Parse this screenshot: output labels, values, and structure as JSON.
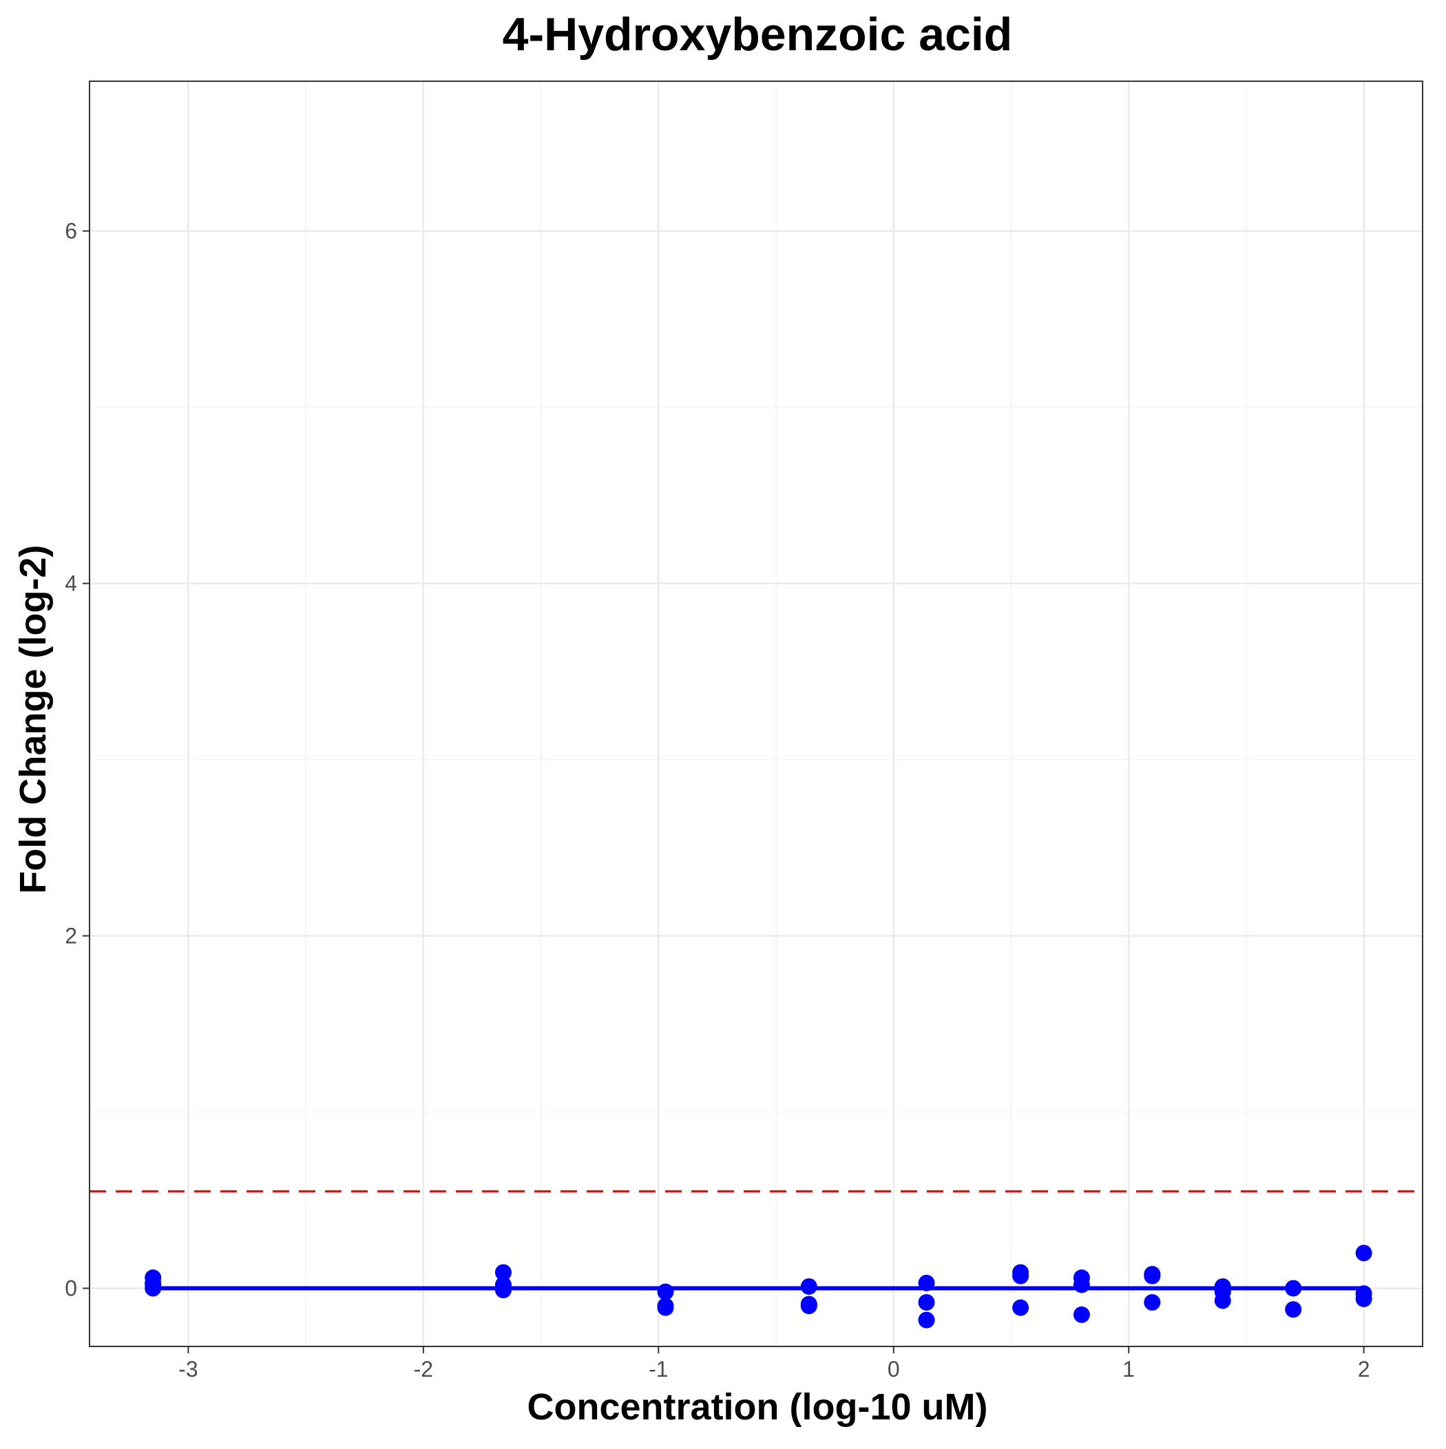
{
  "chart_data": {
    "type": "scatter",
    "title": "4-Hydroxybenzoic acid",
    "xlabel": "Concentration (log-10 uM)",
    "ylabel": "Fold Change (log-2)",
    "xlim": [
      -3.42,
      2.25
    ],
    "ylim": [
      -0.33,
      6.85
    ],
    "x_ticks": [
      -3,
      -2,
      -1,
      0,
      1,
      2
    ],
    "x_tick_labels": [
      "-3",
      "-2",
      "-1",
      "0",
      "1",
      "2"
    ],
    "y_ticks": [
      0,
      2,
      4,
      6
    ],
    "y_tick_labels": [
      "0",
      "2",
      "4",
      "6"
    ],
    "grid": true,
    "threshold": {
      "y": 0.55,
      "color": "#ff0000",
      "style": "dashed"
    },
    "fit_line": {
      "y": 0.0,
      "x_start": -3.15,
      "x_end": 2.0,
      "color": "#0000ff"
    },
    "points": {
      "color": "#0000ff",
      "x": [
        -3.15,
        -3.15,
        -3.15,
        -3.15,
        -1.66,
        -1.66,
        -1.66,
        -0.97,
        -0.97,
        -0.97,
        -0.36,
        -0.36,
        -0.36,
        0.14,
        0.14,
        0.14,
        0.54,
        0.54,
        0.54,
        0.8,
        0.8,
        0.8,
        1.1,
        1.1,
        1.1,
        1.4,
        1.4,
        1.4,
        1.7,
        1.7,
        2.0,
        2.0,
        2.0
      ],
      "y": [
        0.06,
        0.03,
        0.0,
        0.02,
        0.09,
        0.02,
        -0.01,
        -0.02,
        -0.11,
        -0.1,
        0.01,
        -0.09,
        -0.1,
        0.03,
        -0.08,
        -0.18,
        0.09,
        0.07,
        -0.11,
        0.06,
        0.02,
        -0.15,
        0.08,
        0.07,
        -0.08,
        0.01,
        -0.02,
        -0.07,
        0.0,
        -0.12,
        0.2,
        -0.03,
        -0.06
      ]
    }
  }
}
